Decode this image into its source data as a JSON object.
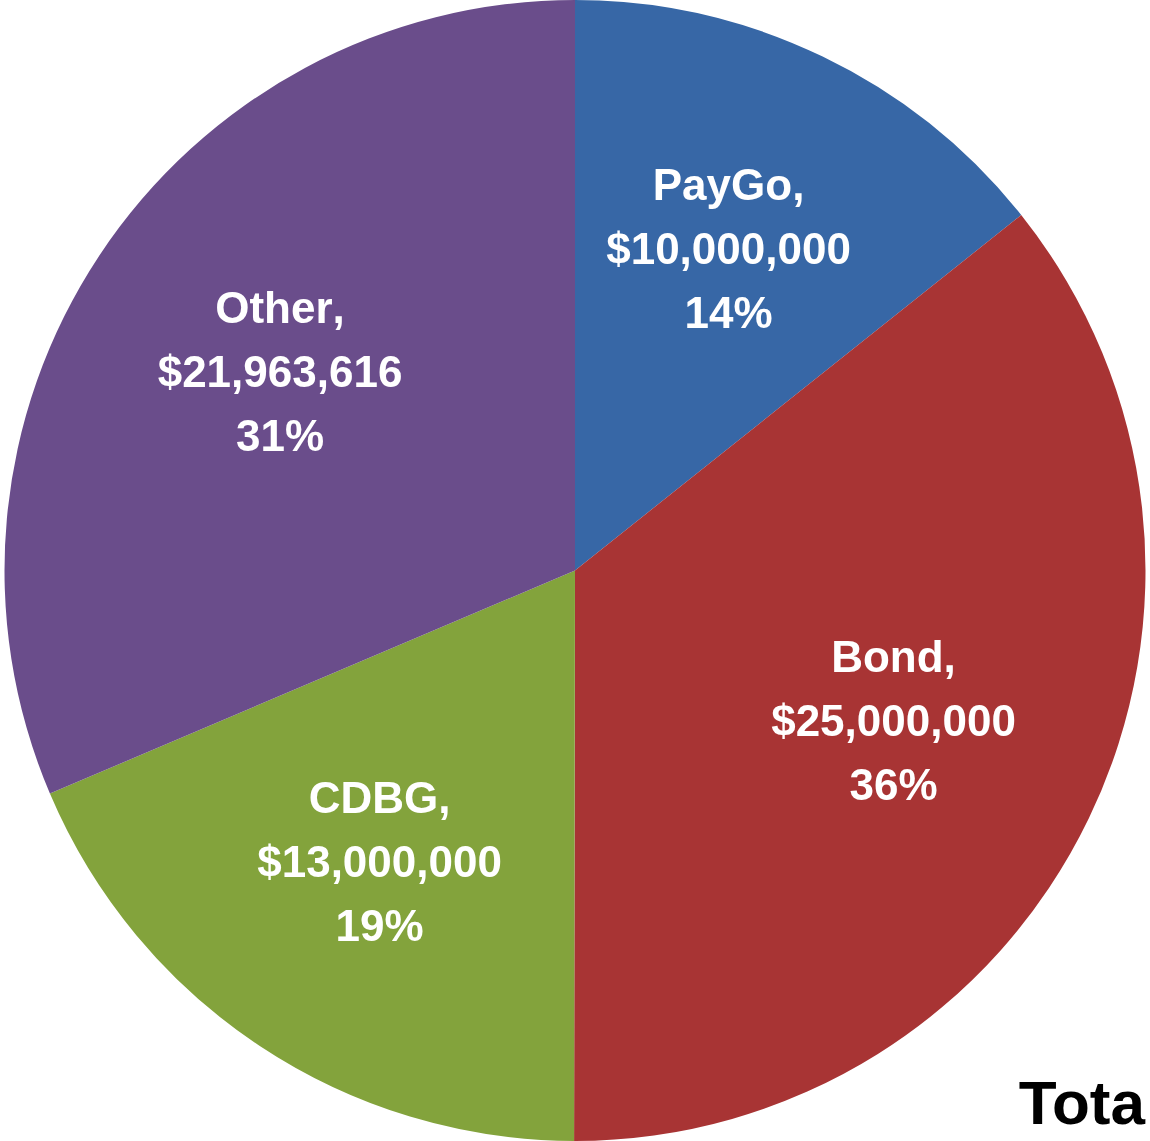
{
  "chart_data": {
    "type": "pie",
    "categories": [
      "PayGo",
      "Bond",
      "CDBG",
      "Other"
    ],
    "values": [
      10000000,
      25000000,
      13000000,
      21963616
    ],
    "colors": [
      "#3767a6",
      "#a83434",
      "#83a33c",
      "#6a4d8b"
    ],
    "value_labels": [
      ",\n$10,000,000\n14%",
      ",\n$25,000,000\n36%",
      ",\n$13,000,000\n19%",
      ",\n$21,963,616\n31%"
    ],
    "annotations": [
      "Tota"
    ],
    "legend": false
  }
}
